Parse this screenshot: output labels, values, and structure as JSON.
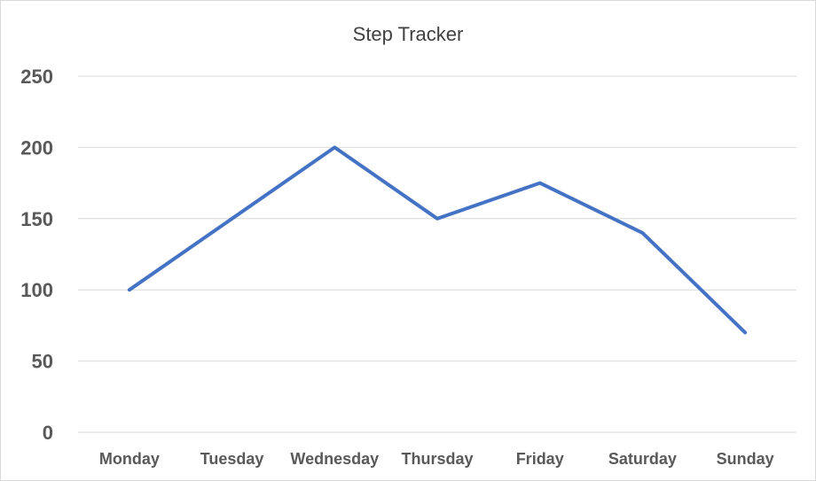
{
  "chart_data": {
    "type": "line",
    "title": "Step Tracker",
    "categories": [
      "Monday",
      "Tuesday",
      "Wednesday",
      "Thursday",
      "Friday",
      "Saturday",
      "Sunday"
    ],
    "series": [
      {
        "values": [
          100,
          150,
          200,
          150,
          175,
          140,
          70
        ],
        "color": "#4472c4"
      }
    ],
    "ylim": [
      0,
      250
    ],
    "yticks": [
      "0",
      "50",
      "100",
      "150",
      "200",
      "250"
    ],
    "grid": true,
    "legend": "none",
    "colors": {
      "gridline": "#d9d9d9",
      "line": "#4472c4",
      "tick_text": "#595959",
      "title_text": "#404040"
    }
  }
}
